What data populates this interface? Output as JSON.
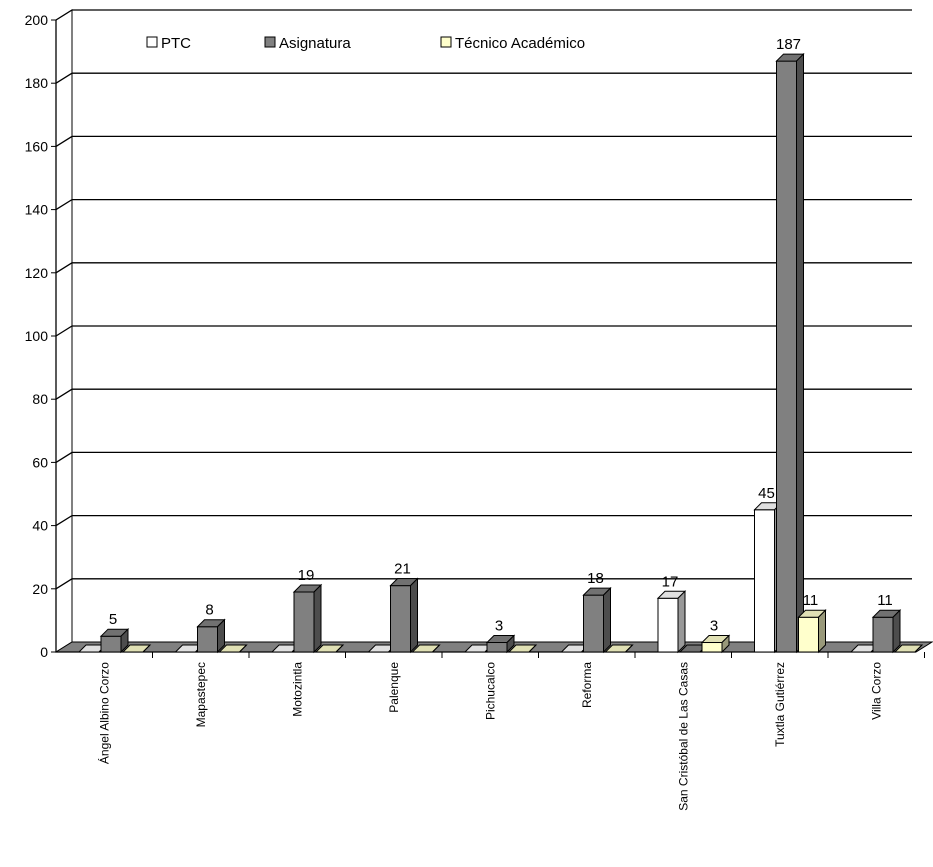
{
  "chart_data": {
    "type": "bar",
    "title": "",
    "xlabel": "",
    "ylabel": "",
    "ylim": [
      0,
      200
    ],
    "yticks": [
      0,
      20,
      40,
      60,
      80,
      100,
      120,
      140,
      160,
      180,
      200
    ],
    "grid": true,
    "legend_position": "top",
    "categories": [
      "Ángel Albino Corzo",
      "Mapastepec",
      "Motozintla",
      "Palenque",
      "Pichucalco",
      "Reforma",
      "San Cristóbal de Las Casas",
      "Tuxtla Gutiérrez",
      "Villa Corzo"
    ],
    "series": [
      {
        "name": "PTC",
        "color": "#ffffff",
        "values": [
          0,
          0,
          0,
          0,
          0,
          0,
          17,
          45,
          0
        ]
      },
      {
        "name": "Asignatura",
        "color": "#808080",
        "values": [
          5,
          8,
          19,
          21,
          3,
          18,
          0,
          187,
          11
        ]
      },
      {
        "name": "Técnico Académico",
        "color": "#ffffcc",
        "values": [
          0,
          0,
          0,
          0,
          0,
          0,
          3,
          11,
          0
        ]
      }
    ]
  }
}
